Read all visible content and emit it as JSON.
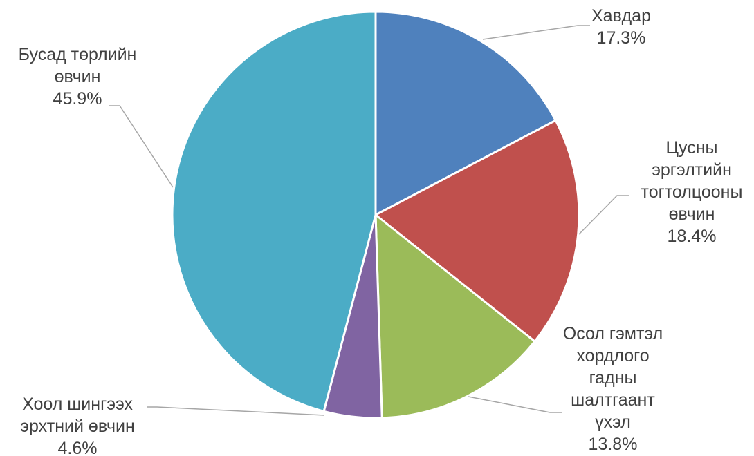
{
  "chart_data": {
    "type": "pie",
    "title": "",
    "slices": [
      {
        "label_lines": [
          "Хавдар"
        ],
        "value": 17.3,
        "value_label": "17.3%",
        "color": "#4f81bd"
      },
      {
        "label_lines": [
          "Цусны",
          "эргэлтийн",
          "тогтолцооны",
          "өвчин"
        ],
        "value": 18.4,
        "value_label": "18.4%",
        "color": "#c0504d"
      },
      {
        "label_lines": [
          "Осол гэмтэл",
          "хордлого",
          "гадны",
          "шалтгаант",
          "үхэл"
        ],
        "value": 13.8,
        "value_label": "13.8%",
        "color": "#9bbb59"
      },
      {
        "label_lines": [
          "Хоол шингээх",
          "эрхтний өвчин"
        ],
        "value": 4.6,
        "value_label": "4.6%",
        "color": "#8064a2"
      },
      {
        "label_lines": [
          "Бусад төрлийн",
          "өвчин"
        ],
        "value": 45.9,
        "value_label": "45.9%",
        "color": "#4bacc6"
      }
    ]
  }
}
